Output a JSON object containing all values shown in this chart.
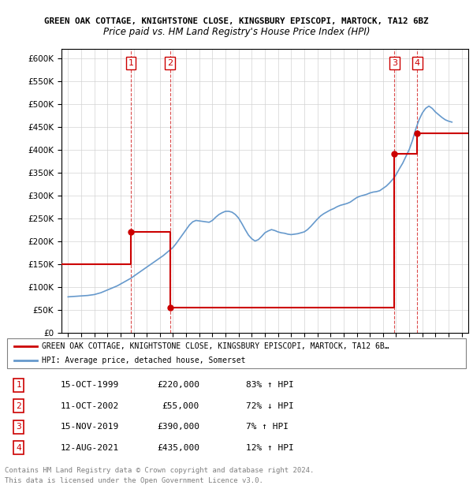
{
  "title1": "GREEN OAK COTTAGE, KNIGHTSTONE CLOSE, KINGSBURY EPISCOPI, MARTOCK, TA12 6BZ",
  "title2": "Price paid vs. HM Land Registry's House Price Index (HPI)",
  "ylabel_ticks": [
    "£0",
    "£50K",
    "£100K",
    "£150K",
    "£200K",
    "£250K",
    "£300K",
    "£350K",
    "£400K",
    "£450K",
    "£500K",
    "£550K",
    "£600K"
  ],
  "ytick_values": [
    0,
    50000,
    100000,
    150000,
    200000,
    250000,
    300000,
    350000,
    400000,
    450000,
    500000,
    550000,
    600000
  ],
  "xlim": [
    1994.5,
    2025.5
  ],
  "ylim": [
    0,
    620000
  ],
  "hpi_color": "#6699cc",
  "price_color": "#cc0000",
  "transactions": [
    {
      "num": 1,
      "date": "15-OCT-1999",
      "year": 1999.79,
      "price": 220000,
      "pct": "83%",
      "dir": "↑"
    },
    {
      "num": 2,
      "date": "11-OCT-2002",
      "year": 2002.78,
      "price": 55000,
      "pct": "72%",
      "dir": "↓"
    },
    {
      "num": 3,
      "date": "15-NOV-2019",
      "year": 2019.87,
      "price": 390000,
      "pct": "7%",
      "dir": "↑"
    },
    {
      "num": 4,
      "date": "12-AUG-2021",
      "year": 2021.62,
      "price": 435000,
      "pct": "12%",
      "dir": "↑"
    }
  ],
  "legend_label_red": "GREEN OAK COTTAGE, KNIGHTSTONE CLOSE, KINGSBURY EPISCOPI, MARTOCK, TA12 6B…",
  "legend_label_blue": "HPI: Average price, detached house, Somerset",
  "footer1": "Contains HM Land Registry data © Crown copyright and database right 2024.",
  "footer2": "This data is licensed under the Open Government Licence v3.0.",
  "hpi_data_x": [
    1995,
    1995.25,
    1995.5,
    1995.75,
    1996,
    1996.25,
    1996.5,
    1996.75,
    1997,
    1997.25,
    1997.5,
    1997.75,
    1998,
    1998.25,
    1998.5,
    1998.75,
    1999,
    1999.25,
    1999.5,
    1999.75,
    2000,
    2000.25,
    2000.5,
    2000.75,
    2001,
    2001.25,
    2001.5,
    2001.75,
    2002,
    2002.25,
    2002.5,
    2002.75,
    2003,
    2003.25,
    2003.5,
    2003.75,
    2004,
    2004.25,
    2004.5,
    2004.75,
    2005,
    2005.25,
    2005.5,
    2005.75,
    2006,
    2006.25,
    2006.5,
    2006.75,
    2007,
    2007.25,
    2007.5,
    2007.75,
    2008,
    2008.25,
    2008.5,
    2008.75,
    2009,
    2009.25,
    2009.5,
    2009.75,
    2010,
    2010.25,
    2010.5,
    2010.75,
    2011,
    2011.25,
    2011.5,
    2011.75,
    2012,
    2012.25,
    2012.5,
    2012.75,
    2013,
    2013.25,
    2013.5,
    2013.75,
    2014,
    2014.25,
    2014.5,
    2014.75,
    2015,
    2015.25,
    2015.5,
    2015.75,
    2016,
    2016.25,
    2016.5,
    2016.75,
    2017,
    2017.25,
    2017.5,
    2017.75,
    2018,
    2018.25,
    2018.5,
    2018.75,
    2019,
    2019.25,
    2019.5,
    2019.75,
    2020,
    2020.25,
    2020.5,
    2020.75,
    2021,
    2021.25,
    2021.5,
    2021.75,
    2022,
    2022.25,
    2022.5,
    2022.75,
    2023,
    2023.25,
    2023.5,
    2023.75,
    2024,
    2024.25
  ],
  "hpi_data_y": [
    78000,
    78500,
    79000,
    79500,
    80000,
    80500,
    81000,
    82000,
    83000,
    85000,
    87000,
    90000,
    93000,
    96000,
    99000,
    102000,
    106000,
    110000,
    114000,
    118000,
    123000,
    128000,
    133000,
    138000,
    143000,
    148000,
    153000,
    158000,
    163000,
    168000,
    174000,
    180000,
    186000,
    195000,
    205000,
    215000,
    225000,
    235000,
    242000,
    245000,
    244000,
    243000,
    242000,
    241000,
    245000,
    252000,
    258000,
    262000,
    265000,
    265000,
    263000,
    258000,
    250000,
    238000,
    225000,
    213000,
    205000,
    200000,
    203000,
    210000,
    218000,
    222000,
    225000,
    223000,
    220000,
    218000,
    217000,
    215000,
    214000,
    215000,
    216000,
    218000,
    220000,
    225000,
    232000,
    240000,
    248000,
    255000,
    260000,
    264000,
    268000,
    271000,
    275000,
    278000,
    280000,
    282000,
    285000,
    290000,
    295000,
    298000,
    300000,
    302000,
    305000,
    307000,
    308000,
    310000,
    315000,
    320000,
    327000,
    335000,
    345000,
    358000,
    370000,
    385000,
    400000,
    420000,
    445000,
    465000,
    480000,
    490000,
    495000,
    490000,
    482000,
    476000,
    470000,
    465000,
    462000,
    460000
  ],
  "price_line_x": [
    1994.5,
    1999.79,
    1999.79,
    2002.78,
    2002.78,
    2019.87,
    2019.87,
    2021.62,
    2021.62,
    2025.5
  ],
  "price_line_y": [
    150000,
    150000,
    220000,
    220000,
    55000,
    55000,
    390000,
    390000,
    435000,
    435000
  ]
}
